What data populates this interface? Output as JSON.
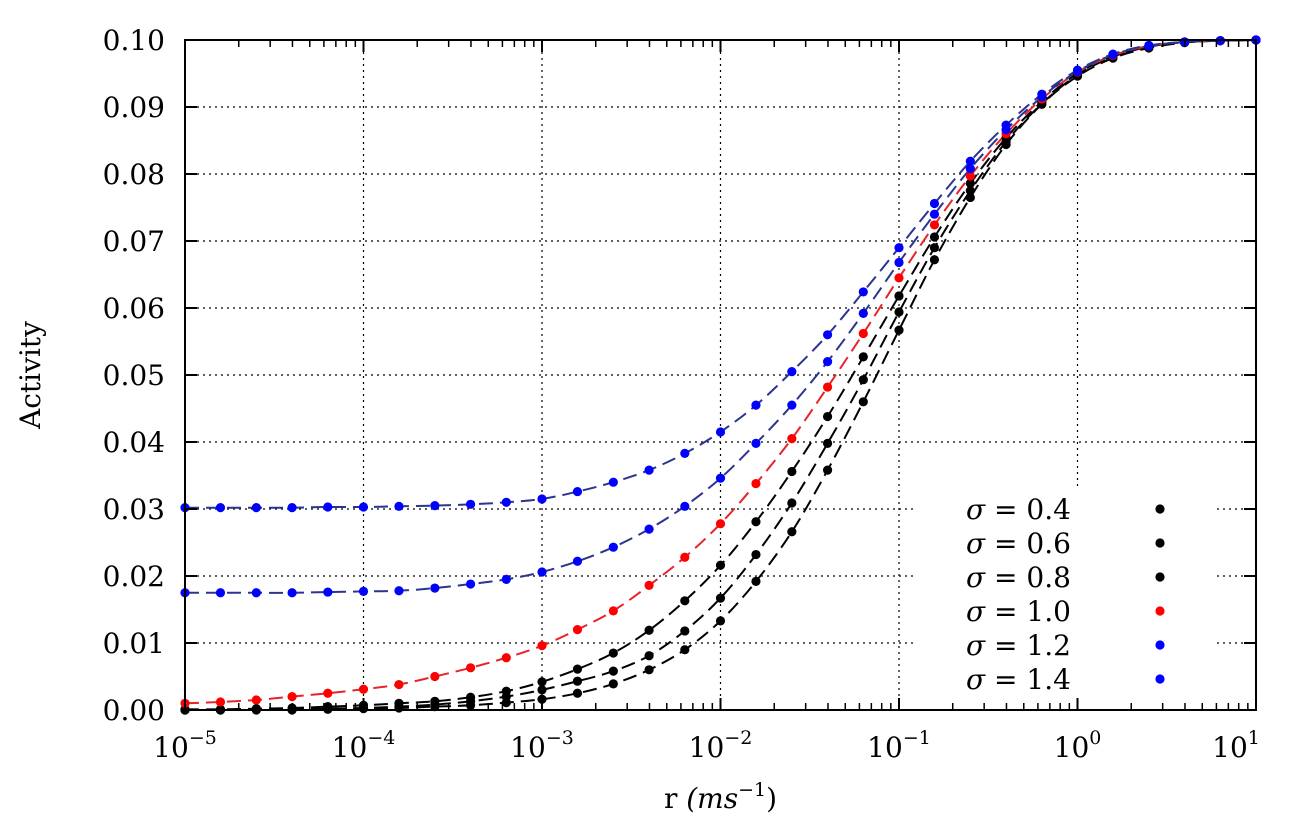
{
  "chart_data": {
    "type": "scatter",
    "xscale": "log",
    "xlim": [
      1e-05,
      10
    ],
    "ylim": [
      0.0,
      0.1
    ],
    "xlabel": "r (ms^-1)",
    "xlabel_main": "r",
    "xlabel_units": "(ms",
    "xlabel_exponent": "−1",
    "xlabel_close": ")",
    "ylabel": "Activity",
    "grid": true,
    "legend_position": "bottom-right",
    "y_ticks": [
      "0.00",
      "0.01",
      "0.02",
      "0.03",
      "0.04",
      "0.05",
      "0.06",
      "0.07",
      "0.08",
      "0.09",
      "0.10"
    ],
    "x_ticks": [
      {
        "base": "10",
        "exp": "−5"
      },
      {
        "base": "10",
        "exp": "−4"
      },
      {
        "base": "10",
        "exp": "−3"
      },
      {
        "base": "10",
        "exp": "−2"
      },
      {
        "base": "10",
        "exp": "−1"
      },
      {
        "base": "10",
        "exp": "0"
      },
      {
        "base": "10",
        "exp": "1"
      }
    ],
    "x_tick_values": [
      1e-05,
      0.0001,
      0.001,
      0.01,
      0.1,
      1,
      10
    ],
    "x": [
      1e-05,
      1.58e-05,
      2.51e-05,
      3.98e-05,
      6.31e-05,
      0.0001,
      0.000158,
      0.000251,
      0.000398,
      0.000631,
      0.001,
      0.00158,
      0.00251,
      0.00398,
      0.00631,
      0.01,
      0.0158,
      0.0251,
      0.0398,
      0.0631,
      0.1,
      0.158,
      0.251,
      0.398,
      0.631,
      1,
      1.58,
      2.51,
      3.98,
      6.31,
      10
    ],
    "series": [
      {
        "name": "σ = 0.4",
        "color": "#000000",
        "line_color": "#000000",
        "values": [
          0.0,
          0.0,
          0.0,
          0.0,
          0.0001,
          0.0002,
          0.0003,
          0.0005,
          0.0007,
          0.0011,
          0.0016,
          0.0025,
          0.0039,
          0.006,
          0.009,
          0.0133,
          0.0192,
          0.0266,
          0.0358,
          0.046,
          0.0567,
          0.0672,
          0.0765,
          0.0844,
          0.0904,
          0.0946,
          0.0973,
          0.0988,
          0.0996,
          0.0999,
          0.1
        ]
      },
      {
        "name": "σ = 0.6",
        "color": "#000000",
        "line_color": "#000000",
        "values": [
          0.0,
          0.0,
          0.0001,
          0.0001,
          0.0002,
          0.0003,
          0.0005,
          0.0008,
          0.0013,
          0.002,
          0.003,
          0.0043,
          0.0058,
          0.0081,
          0.0118,
          0.0167,
          0.0232,
          0.0309,
          0.0398,
          0.0493,
          0.0594,
          0.069,
          0.0775,
          0.0848,
          0.0905,
          0.0948,
          0.0975,
          0.099,
          0.0997,
          0.0999,
          0.1
        ]
      },
      {
        "name": "σ = 0.8",
        "color": "#000000",
        "line_color": "#000000",
        "values": [
          0.0001,
          0.0001,
          0.0002,
          0.0003,
          0.0005,
          0.0007,
          0.001,
          0.0013,
          0.0019,
          0.0028,
          0.0042,
          0.0061,
          0.0085,
          0.0119,
          0.0163,
          0.0216,
          0.0281,
          0.0356,
          0.0438,
          0.0527,
          0.0618,
          0.0706,
          0.0786,
          0.0854,
          0.0908,
          0.095,
          0.0976,
          0.099,
          0.0997,
          0.0999,
          0.1
        ]
      },
      {
        "name": "σ = 1.0",
        "color": "#ff0000",
        "line_color": "#e8232a",
        "values": [
          0.001,
          0.0012,
          0.0015,
          0.002,
          0.0025,
          0.0031,
          0.0038,
          0.005,
          0.0063,
          0.0078,
          0.0096,
          0.012,
          0.0148,
          0.0186,
          0.0228,
          0.0278,
          0.0338,
          0.0405,
          0.0482,
          0.0562,
          0.0645,
          0.0724,
          0.0797,
          0.086,
          0.0912,
          0.0952,
          0.0977,
          0.0991,
          0.0997,
          0.0999,
          0.1
        ]
      },
      {
        "name": "σ = 1.2",
        "color": "#0000ff",
        "line_color": "#2b3590",
        "values": [
          0.0175,
          0.0175,
          0.0175,
          0.0175,
          0.0176,
          0.0177,
          0.0178,
          0.0182,
          0.0188,
          0.0195,
          0.0206,
          0.0222,
          0.0243,
          0.027,
          0.0304,
          0.0346,
          0.0398,
          0.0455,
          0.052,
          0.0592,
          0.0668,
          0.074,
          0.0808,
          0.0866,
          0.0915,
          0.0953,
          0.0978,
          0.0991,
          0.0997,
          0.0999,
          0.1
        ]
      },
      {
        "name": "σ = 1.4",
        "color": "#0000ff",
        "line_color": "#2b3590",
        "values": [
          0.0302,
          0.0302,
          0.0302,
          0.0302,
          0.0303,
          0.0303,
          0.0304,
          0.0305,
          0.0307,
          0.031,
          0.0315,
          0.0326,
          0.034,
          0.0358,
          0.0383,
          0.0415,
          0.0455,
          0.0505,
          0.056,
          0.0624,
          0.069,
          0.0756,
          0.0819,
          0.0873,
          0.0919,
          0.0955,
          0.0979,
          0.0992,
          0.0997,
          0.0999,
          0.1
        ]
      }
    ],
    "legend_entries": [
      {
        "sigma": "σ",
        "eq": " = 0.4",
        "color": "#000000"
      },
      {
        "sigma": "σ",
        "eq": " = 0.6",
        "color": "#000000"
      },
      {
        "sigma": "σ",
        "eq": " = 0.8",
        "color": "#000000"
      },
      {
        "sigma": "σ",
        "eq": " = 1.0",
        "color": "#ff0000"
      },
      {
        "sigma": "σ",
        "eq": " = 1.2",
        "color": "#0000ff"
      },
      {
        "sigma": "σ",
        "eq": " = 1.4",
        "color": "#0000ff"
      }
    ]
  }
}
